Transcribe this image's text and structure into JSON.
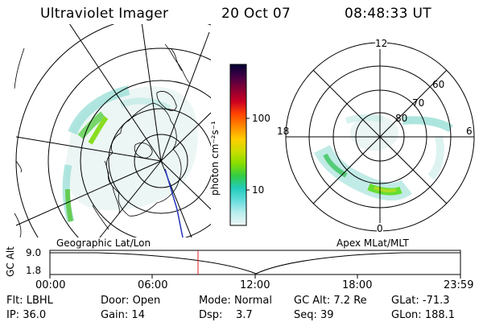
{
  "header": {
    "instrument": "Ultraviolet Imager",
    "date": "20 Oct 07",
    "time": "08:48:33 UT"
  },
  "colorbar": {
    "unit_label": "photon cm⁻²s⁻¹",
    "ticks": [
      "100",
      "10"
    ],
    "colors": [
      "#000033",
      "#440044",
      "#880033",
      "#cc0022",
      "#ff4400",
      "#ff8800",
      "#ffcc00",
      "#ccdd00",
      "#88dd00",
      "#33cc44",
      "#22ccbb",
      "#66dddd",
      "#bbeeee",
      "#eef7f7"
    ]
  },
  "left_map": {
    "caption": "Geographic Lat/Lon"
  },
  "right_map": {
    "caption": "Apex MLat/MLT",
    "mlt_labels": {
      "top": "12",
      "left": "18",
      "right": "6",
      "bottom": "0"
    },
    "lat_labels": [
      "60",
      "70",
      "80"
    ]
  },
  "timeline": {
    "y_label": "GC Alt",
    "y_ticks": [
      "9.0",
      "1.8"
    ],
    "x_ticks": [
      "00:00",
      "06:00",
      "12:00",
      "18:00",
      "23:59"
    ],
    "marker_color": "#dd2222"
  },
  "footer": {
    "row1": [
      {
        "label": "Flt:",
        "value": "LBHL"
      },
      {
        "label": "Door:",
        "value": "Open"
      },
      {
        "label": "Mode:",
        "value": "Normal"
      },
      {
        "label": "GC Alt:",
        "value": "7.2 Re"
      },
      {
        "label": "GLat:",
        "value": "-71.3"
      }
    ],
    "row2": [
      {
        "label": "IP:",
        "value": "36.0"
      },
      {
        "label": "Gain:",
        "value": "14"
      },
      {
        "label": "Dsp:",
        "value": "3.7"
      },
      {
        "label": "Seq:",
        "value": "39"
      },
      {
        "label": "GLon:",
        "value": "188.1"
      }
    ]
  }
}
